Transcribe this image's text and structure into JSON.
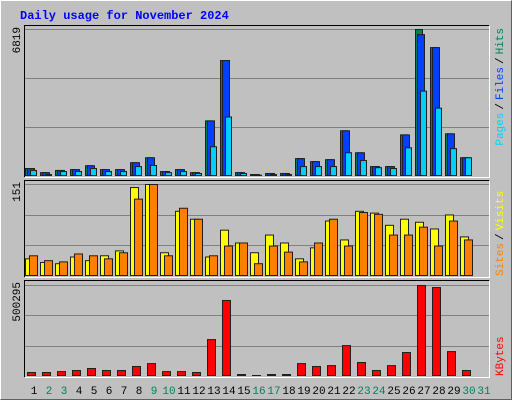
{
  "chart_data": [
    {
      "type": "bar",
      "title": "Daily usage for November 2024",
      "ylim": [
        0,
        6819
      ],
      "yticks": [
        6819
      ],
      "legend_separator": "/",
      "series": [
        {
          "name": "Hits",
          "color": "#00805c",
          "values": [
            370,
            180,
            280,
            320,
            500,
            320,
            320,
            640,
            870,
            230,
            320,
            180,
            2580,
            5380,
            180,
            90,
            140,
            140,
            830,
            690,
            780,
            2120,
            1100,
            460,
            460,
            1930,
            6819,
            5980,
            1980,
            870,
            0
          ]
        },
        {
          "name": "Files",
          "color": "#0040ff",
          "values": [
            370,
            180,
            280,
            320,
            500,
            320,
            320,
            640,
            870,
            230,
            320,
            180,
            2580,
            5380,
            180,
            90,
            140,
            140,
            830,
            690,
            780,
            2120,
            1100,
            460,
            460,
            1930,
            6580,
            5980,
            1980,
            870,
            0
          ]
        },
        {
          "name": "Pages",
          "color": "#00d0ff",
          "values": [
            280,
            90,
            230,
            230,
            370,
            230,
            230,
            460,
            510,
            180,
            230,
            140,
            1380,
            2760,
            140,
            60,
            90,
            90,
            460,
            460,
            460,
            1100,
            740,
            410,
            370,
            1330,
            3960,
            3170,
            1290,
            870,
            0
          ]
        }
      ]
    },
    {
      "type": "bar",
      "ylim": [
        0,
        151
      ],
      "yticks": [
        151
      ],
      "legend_separator": "/",
      "series": [
        {
          "name": "Visits",
          "color": "#ffff00",
          "values": [
            29,
            23,
            21,
            32,
            26,
            34,
            42,
            146,
            151,
            39,
            107,
            94,
            32,
            76,
            55,
            39,
            68,
            55,
            29,
            47,
            91,
            60,
            107,
            104,
            84,
            94,
            89,
            78,
            101,
            65,
            0
          ]
        },
        {
          "name": "Sites",
          "color": "#ff8000",
          "values": [
            34,
            26,
            24,
            37,
            34,
            29,
            39,
            127,
            151,
            34,
            112,
            94,
            34,
            50,
            55,
            21,
            50,
            40,
            24,
            55,
            94,
            50,
            105,
            102,
            68,
            68,
            81,
            50,
            91,
            60,
            0
          ]
        }
      ]
    },
    {
      "type": "bar",
      "ylim": [
        0,
        500295
      ],
      "yticks": [
        500295
      ],
      "categories": [
        "1",
        "2",
        "3",
        "4",
        "5",
        "6",
        "7",
        "8",
        "9",
        "10",
        "11",
        "12",
        "13",
        "14",
        "15",
        "16",
        "17",
        "18",
        "19",
        "20",
        "21",
        "22",
        "23",
        "24",
        "25",
        "26",
        "27",
        "28",
        "29",
        "30",
        "31"
      ],
      "category_colors": [
        "#000000",
        "#00805c",
        "#00805c",
        "#000000",
        "#000000",
        "#000000",
        "#000000",
        "#000000",
        "#00805c",
        "#00805c",
        "#000000",
        "#000000",
        "#000000",
        "#000000",
        "#000000",
        "#00805c",
        "#00805c",
        "#000000",
        "#000000",
        "#000000",
        "#000000",
        "#000000",
        "#00805c",
        "#00805c",
        "#000000",
        "#000000",
        "#000000",
        "#000000",
        "#000000",
        "#00805c",
        "#00805c"
      ],
      "series": [
        {
          "name": "KBytes",
          "color": "#ff0000",
          "values": [
            22000,
            22000,
            27000,
            33000,
            44000,
            33000,
            33000,
            55000,
            71000,
            27000,
            27000,
            22000,
            203000,
            418000,
            11000,
            5500,
            11000,
            11000,
            71000,
            55000,
            60000,
            170000,
            77000,
            33000,
            60000,
            132000,
            500295,
            489000,
            137000,
            33000,
            0
          ]
        }
      ]
    }
  ]
}
